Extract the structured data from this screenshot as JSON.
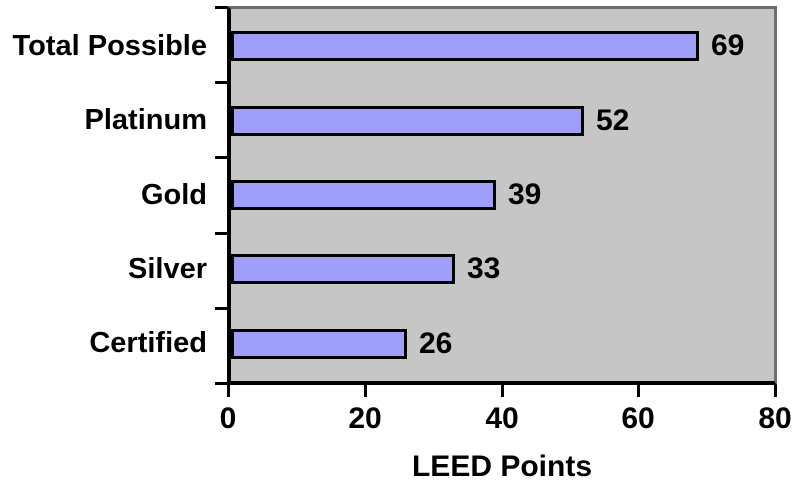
{
  "chart_data": {
    "type": "bar",
    "orientation": "horizontal",
    "title": "",
    "xlabel": "LEED Points",
    "ylabel": "",
    "categories": [
      "Total Possible",
      "Platinum",
      "Gold",
      "Silver",
      "Certified"
    ],
    "values": [
      69,
      52,
      39,
      33,
      26
    ],
    "data_labels": [
      "69",
      "52",
      "39",
      "33",
      "26"
    ],
    "xlim": [
      0,
      80
    ],
    "xticks": [
      "0",
      "20",
      "40",
      "60",
      "80"
    ],
    "grid": "off",
    "legend": "none",
    "colors": {
      "bar_fill": "#9f9ffa",
      "bar_border": "#000000",
      "plot_background": "#c6c6c6",
      "outer_background": "#ffffff",
      "axis_line": "#000000",
      "plot_border": "#6e6e6e",
      "text": "#000000"
    }
  }
}
